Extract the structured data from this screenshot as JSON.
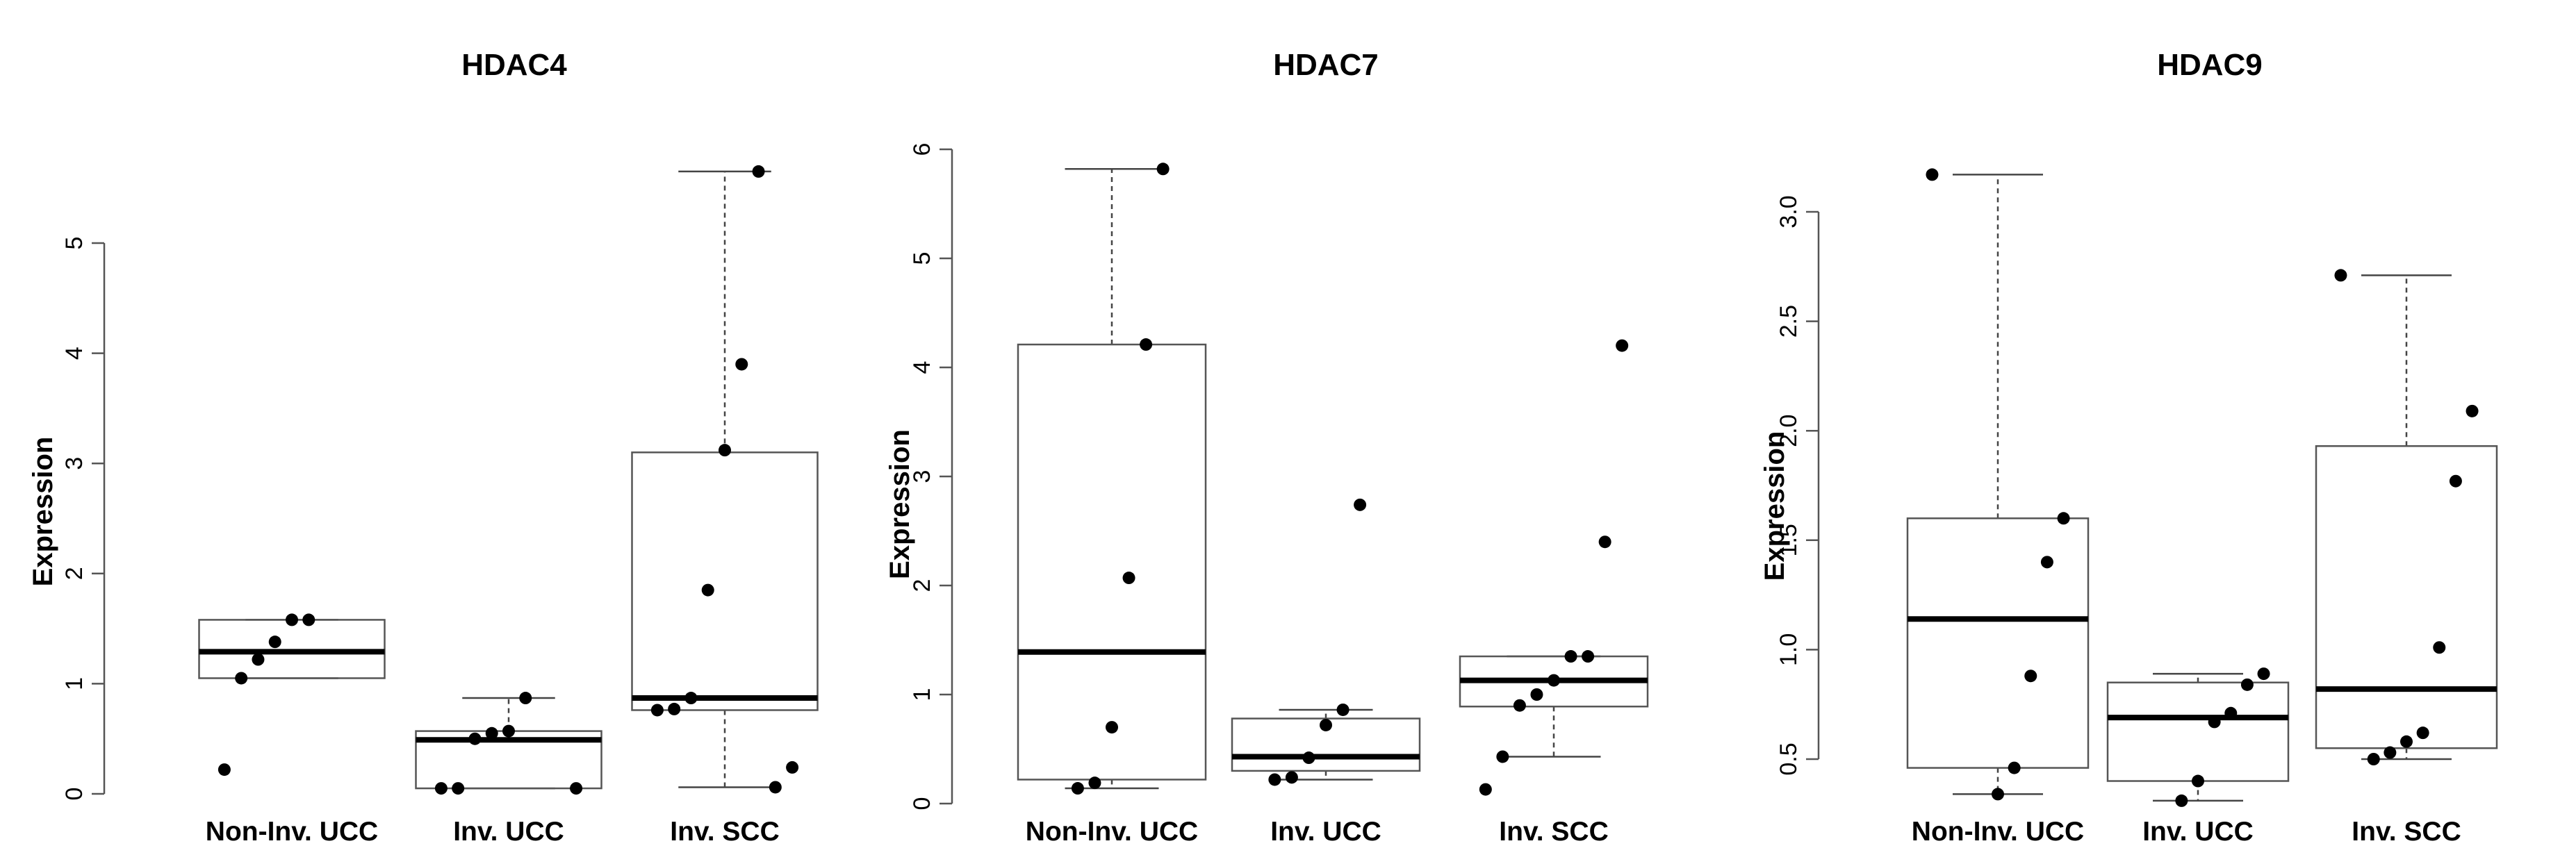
{
  "colors": {
    "box": "#555555",
    "median": "#000000",
    "point": "#000000",
    "background": "#ffffff"
  },
  "chart_data": [
    {
      "type": "box",
      "title": "HDAC4",
      "ylabel": "Expression",
      "categories": [
        "Non-Inv. UCC",
        "Inv. UCC",
        "Inv. SCC"
      ],
      "yticks": [
        "0",
        "1",
        "2",
        "3",
        "4",
        "5"
      ],
      "ylim": [
        -0.05,
        5.8
      ],
      "boxes": [
        {
          "q1": 1.05,
          "median": 1.29,
          "q3": 1.58,
          "whisker_low": 1.05,
          "whisker_high": 1.58,
          "points": [
            0.22,
            1.05,
            1.22,
            1.38,
            1.58,
            1.58
          ]
        },
        {
          "q1": 0.05,
          "median": 0.49,
          "q3": 0.57,
          "whisker_low": 0.05,
          "whisker_high": 0.87,
          "points": [
            0.05,
            0.05,
            0.05,
            0.5,
            0.55,
            0.57,
            0.87
          ]
        },
        {
          "q1": 0.76,
          "median": 0.87,
          "q3": 3.1,
          "whisker_low": 0.06,
          "whisker_high": 5.65,
          "points": [
            0.06,
            0.24,
            0.76,
            0.77,
            0.87,
            1.85,
            3.12,
            3.9,
            5.65
          ]
        }
      ]
    },
    {
      "type": "box",
      "title": "HDAC7",
      "ylabel": "Expression",
      "categories": [
        "Non-Inv. UCC",
        "Inv. UCC",
        "Inv. SCC"
      ],
      "yticks": [
        "0",
        "1",
        "2",
        "3",
        "4",
        "5",
        "6"
      ],
      "ylim": [
        -0.05,
        6.05
      ],
      "boxes": [
        {
          "q1": 0.22,
          "median": 1.39,
          "q3": 4.21,
          "whisker_low": 0.14,
          "whisker_high": 5.82,
          "points": [
            0.14,
            0.19,
            0.7,
            2.07,
            4.21,
            5.82
          ]
        },
        {
          "q1": 0.3,
          "median": 0.43,
          "q3": 0.78,
          "whisker_low": 0.22,
          "whisker_high": 0.86,
          "points": [
            0.22,
            0.24,
            0.42,
            0.72,
            0.86,
            2.74
          ]
        },
        {
          "q1": 0.89,
          "median": 1.13,
          "q3": 1.35,
          "whisker_low": 0.43,
          "whisker_high": 1.35,
          "points": [
            0.13,
            0.43,
            0.9,
            1.0,
            1.13,
            1.35,
            1.35,
            2.4,
            4.2
          ]
        }
      ]
    },
    {
      "type": "box",
      "title": "HDAC9",
      "ylabel": "Expression",
      "categories": [
        "Non-Inv. UCC",
        "Inv. UCC",
        "Inv. SCC"
      ],
      "yticks": [
        "0.5",
        "1.0",
        "1.5",
        "2.0",
        "2.5",
        "3.0"
      ],
      "ylim": [
        0.3,
        3.25
      ],
      "boxes": [
        {
          "q1": 0.46,
          "median": 1.14,
          "q3": 1.6,
          "whisker_low": 0.34,
          "whisker_high": 3.17,
          "points": [
            0.34,
            0.46,
            0.88,
            1.4,
            1.6,
            3.17
          ]
        },
        {
          "q1": 0.4,
          "median": 0.69,
          "q3": 0.85,
          "whisker_low": 0.31,
          "whisker_high": 0.89,
          "points": [
            0.31,
            0.4,
            0.67,
            0.71,
            0.84,
            0.89
          ]
        },
        {
          "q1": 0.55,
          "median": 0.82,
          "q3": 1.93,
          "whisker_low": 0.5,
          "whisker_high": 2.71,
          "points": [
            0.5,
            0.53,
            0.58,
            0.62,
            1.01,
            1.77,
            2.09,
            2.71
          ]
        }
      ]
    }
  ]
}
